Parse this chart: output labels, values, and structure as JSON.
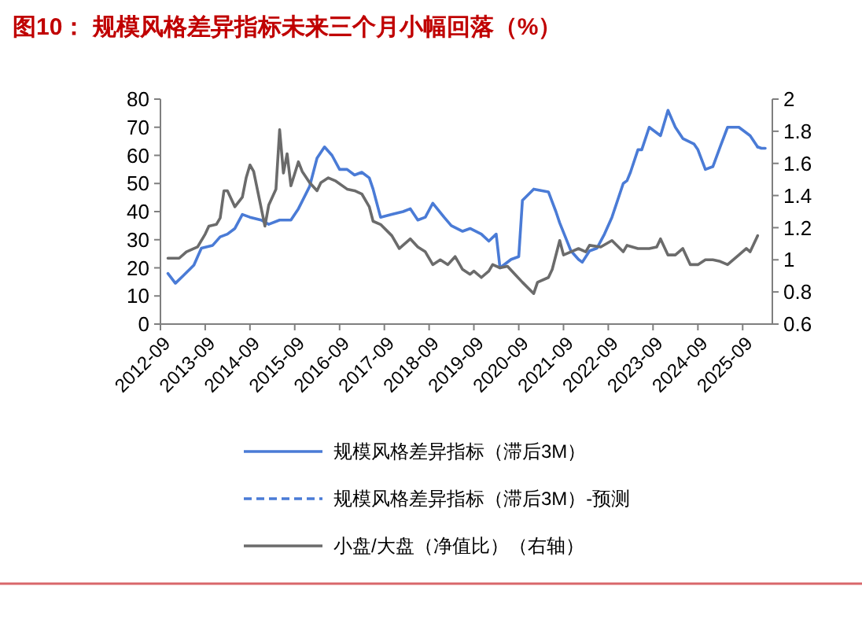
{
  "chart_data": {
    "type": "line",
    "title": "图10：  规模风格差异指标未来三个月小幅回落（%）",
    "xlim": [
      "2012-09",
      "2026-05"
    ],
    "xticks": [
      "2012-09",
      "2013-09",
      "2014-09",
      "2015-09",
      "2016-09",
      "2017-09",
      "2018-09",
      "2019-09",
      "2020-09",
      "2021-09",
      "2022-09",
      "2023-09",
      "2024-09",
      "2025-09"
    ],
    "ylim": [
      0,
      80
    ],
    "yticks": [
      0,
      10,
      20,
      30,
      40,
      50,
      60,
      70,
      80
    ],
    "y2lim": [
      0.6,
      2
    ],
    "y2ticks": [
      0.6,
      0.8,
      1,
      1.2,
      1.4,
      1.6,
      1.8,
      2
    ],
    "grid": false,
    "legend": "bottom",
    "marker": "none",
    "series": [
      {
        "name": "规模风格差异指标（滞后3M）",
        "color": "#4a7bd6",
        "line_style": "solid",
        "x": [
          "2012-11",
          "2013-01",
          "2013-03",
          "2013-06",
          "2013-08",
          "2013-11",
          "2014-01",
          "2014-03",
          "2014-05",
          "2014-07",
          "2014-09",
          "2014-12",
          "2015-02",
          "2015-05",
          "2015-08",
          "2015-10",
          "2016-01",
          "2016-03",
          "2016-05",
          "2016-07",
          "2016-09",
          "2016-11",
          "2017-01",
          "2017-03",
          "2017-05",
          "2017-06",
          "2017-08",
          "2017-11",
          "2018-02",
          "2018-04",
          "2018-06",
          "2018-08",
          "2018-10",
          "2019-01",
          "2019-03",
          "2019-06",
          "2019-08",
          "2019-11",
          "2020-01",
          "2020-03",
          "2020-04",
          "2020-07",
          "2020-09",
          "2020-10",
          "2021-01",
          "2021-05",
          "2021-07",
          "2021-08",
          "2021-11",
          "2022-01",
          "2022-02",
          "2022-04",
          "2022-06",
          "2022-08",
          "2022-10",
          "2023-01",
          "2023-02",
          "2023-03",
          "2023-05",
          "2023-06",
          "2023-08",
          "2023-11",
          "2024-01",
          "2024-03",
          "2024-05",
          "2024-08",
          "2024-09",
          "2024-11",
          "2025-01",
          "2025-03",
          "2025-05",
          "2025-08",
          "2025-11",
          "2026-01"
        ],
        "values": [
          18,
          14.5,
          17,
          21,
          27,
          28,
          31,
          32,
          34,
          39,
          38,
          37,
          35.5,
          37,
          37,
          41,
          49,
          59,
          63,
          60,
          55,
          55,
          53,
          54,
          52,
          48,
          38,
          39,
          40,
          41,
          37,
          38,
          43,
          38,
          35,
          33,
          34,
          32,
          29.5,
          32,
          20,
          23,
          24,
          44,
          48,
          47,
          40,
          36,
          26,
          23,
          22,
          26,
          27,
          32,
          38,
          50,
          51,
          54,
          62,
          62,
          70,
          67,
          76,
          70,
          66,
          64,
          62,
          55,
          56,
          63,
          70,
          70,
          67,
          63
        ]
      },
      {
        "name": "规模风格差异指标（滞后3M）-预测",
        "color": "#4a7bd6",
        "line_style": "dashed",
        "x": [
          "2026-01",
          "2026-02",
          "2026-04"
        ],
        "values": [
          63,
          62.5,
          62.5
        ]
      },
      {
        "name": "小盘/大盘（净值比）（右轴）",
        "color": "#6b6b6b",
        "line_style": "solid",
        "axis": "y2",
        "x": [
          "2012-11",
          "2013-02",
          "2013-04",
          "2013-07",
          "2013-09",
          "2013-10",
          "2013-12",
          "2014-01",
          "2014-02",
          "2014-03",
          "2014-05",
          "2014-07",
          "2014-08",
          "2014-09",
          "2014-10",
          "2015-01",
          "2015-02",
          "2015-04",
          "2015-05",
          "2015-06",
          "2015-07",
          "2015-08",
          "2015-10",
          "2015-11",
          "2016-01",
          "2016-03",
          "2016-04",
          "2016-06",
          "2016-08",
          "2016-11",
          "2017-01",
          "2017-03",
          "2017-05",
          "2017-06",
          "2017-08",
          "2017-11",
          "2018-01",
          "2018-04",
          "2018-06",
          "2018-08",
          "2018-10",
          "2018-12",
          "2019-02",
          "2019-04",
          "2019-06",
          "2019-08",
          "2019-09",
          "2019-11",
          "2020-01",
          "2020-02",
          "2020-04",
          "2020-06",
          "2020-08",
          "2020-10",
          "2021-01",
          "2021-02",
          "2021-05",
          "2021-06",
          "2021-08",
          "2021-09",
          "2021-11",
          "2022-01",
          "2022-03",
          "2022-04",
          "2022-07",
          "2022-10",
          "2023-01",
          "2023-02",
          "2023-05",
          "2023-08",
          "2023-10",
          "2023-11",
          "2024-01",
          "2024-03",
          "2024-05",
          "2024-07",
          "2024-09",
          "2024-11",
          "2025-01",
          "2025-03",
          "2025-05",
          "2025-08",
          "2025-10",
          "2025-11",
          "2026-01"
        ],
        "values": [
          1.01,
          1.01,
          1.05,
          1.08,
          1.16,
          1.21,
          1.22,
          1.26,
          1.43,
          1.43,
          1.33,
          1.39,
          1.51,
          1.59,
          1.55,
          1.21,
          1.34,
          1.44,
          1.81,
          1.54,
          1.66,
          1.46,
          1.61,
          1.55,
          1.48,
          1.43,
          1.48,
          1.51,
          1.49,
          1.44,
          1.43,
          1.41,
          1.33,
          1.24,
          1.22,
          1.15,
          1.07,
          1.13,
          1.08,
          1.05,
          0.97,
          1.0,
          0.97,
          1.02,
          0.94,
          0.91,
          0.93,
          0.89,
          0.93,
          0.97,
          0.95,
          0.96,
          0.91,
          0.86,
          0.79,
          0.86,
          0.89,
          0.94,
          1.12,
          1.03,
          1.05,
          1.07,
          1.05,
          1.09,
          1.08,
          1.12,
          1.05,
          1.09,
          1.07,
          1.07,
          1.08,
          1.13,
          1.03,
          1.03,
          1.07,
          0.97,
          0.97,
          1.0,
          1.0,
          0.99,
          0.97,
          1.03,
          1.07,
          1.05,
          1.15
        ]
      }
    ]
  }
}
